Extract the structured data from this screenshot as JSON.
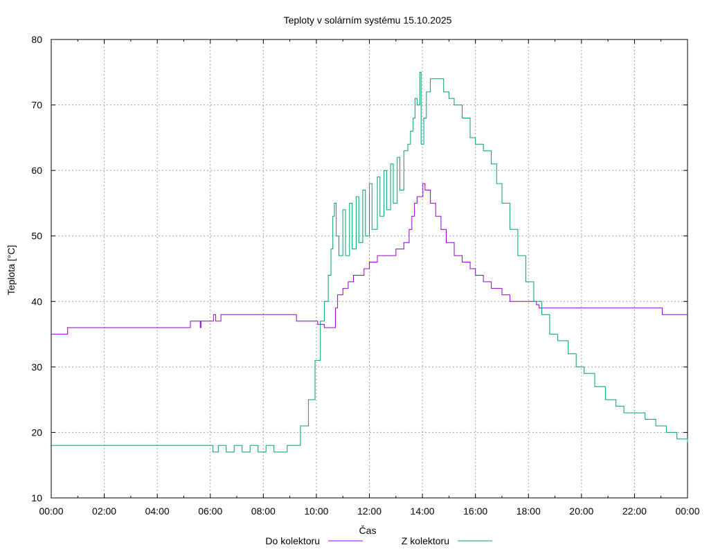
{
  "chart_data": {
    "type": "line",
    "title": "Teploty v solárním systému 15.10.2025",
    "xlabel": "Čas",
    "ylabel": "Teplota [°C]",
    "xlim": [
      0,
      24
    ],
    "ylim": [
      10,
      80
    ],
    "x_ticks": [
      0,
      2,
      4,
      6,
      8,
      10,
      12,
      14,
      16,
      18,
      20,
      22,
      24
    ],
    "x_tick_labels": [
      "00:00",
      "02:00",
      "04:00",
      "06:00",
      "08:00",
      "10:00",
      "12:00",
      "14:00",
      "16:00",
      "18:00",
      "20:00",
      "22:00",
      "00:00"
    ],
    "y_ticks": [
      10,
      20,
      30,
      40,
      50,
      60,
      70,
      80
    ],
    "y_tick_labels": [
      "10",
      "20",
      "30",
      "40",
      "50",
      "60",
      "70",
      "80"
    ],
    "grid": true,
    "legend_position": "bottom",
    "series": [
      {
        "name": "Do kolektoru",
        "color": "#9400d3",
        "points": [
          [
            0,
            35
          ],
          [
            0.6,
            35
          ],
          [
            0.62,
            36
          ],
          [
            3.5,
            36
          ],
          [
            5.2,
            36
          ],
          [
            5.25,
            37
          ],
          [
            5.6,
            37
          ],
          [
            5.62,
            36
          ],
          [
            5.65,
            37
          ],
          [
            6.1,
            37
          ],
          [
            6.12,
            38
          ],
          [
            6.2,
            37
          ],
          [
            6.4,
            38
          ],
          [
            9.2,
            38
          ],
          [
            9.25,
            37
          ],
          [
            9.9,
            37
          ],
          [
            10.0,
            37
          ],
          [
            10.05,
            36.5
          ],
          [
            10.3,
            36
          ],
          [
            10.7,
            36
          ],
          [
            10.72,
            39
          ],
          [
            10.8,
            41
          ],
          [
            11.0,
            42
          ],
          [
            11.2,
            43
          ],
          [
            11.4,
            44
          ],
          [
            11.7,
            44
          ],
          [
            11.8,
            45
          ],
          [
            12.0,
            46
          ],
          [
            12.3,
            47
          ],
          [
            12.8,
            47
          ],
          [
            13.0,
            48
          ],
          [
            13.3,
            49
          ],
          [
            13.5,
            51
          ],
          [
            13.6,
            53
          ],
          [
            13.7,
            55
          ],
          [
            13.8,
            56
          ],
          [
            14.0,
            56
          ],
          [
            14.02,
            58
          ],
          [
            14.1,
            57
          ],
          [
            14.3,
            55
          ],
          [
            14.5,
            53
          ],
          [
            14.7,
            51
          ],
          [
            14.9,
            49
          ],
          [
            15.2,
            47
          ],
          [
            15.5,
            46
          ],
          [
            15.8,
            45
          ],
          [
            16.0,
            44
          ],
          [
            16.3,
            43
          ],
          [
            16.6,
            42
          ],
          [
            17.0,
            41
          ],
          [
            17.3,
            40
          ],
          [
            18.0,
            40
          ],
          [
            18.3,
            39.5
          ],
          [
            18.4,
            39
          ],
          [
            20.0,
            39
          ],
          [
            23.0,
            39
          ],
          [
            23.05,
            38
          ],
          [
            24.0,
            38
          ]
        ]
      },
      {
        "name": "Z kolektoru",
        "color": "#009e73",
        "points": [
          [
            0,
            18
          ],
          [
            6.0,
            18
          ],
          [
            6.1,
            17
          ],
          [
            6.3,
            18
          ],
          [
            6.6,
            17
          ],
          [
            6.9,
            18
          ],
          [
            7.2,
            17
          ],
          [
            7.5,
            18
          ],
          [
            7.8,
            17
          ],
          [
            8.1,
            18
          ],
          [
            8.4,
            17
          ],
          [
            8.7,
            17
          ],
          [
            8.9,
            18
          ],
          [
            9.1,
            18
          ],
          [
            9.4,
            21
          ],
          [
            9.7,
            25
          ],
          [
            9.95,
            31
          ],
          [
            10.15,
            37
          ],
          [
            10.3,
            40
          ],
          [
            10.45,
            44
          ],
          [
            10.55,
            48
          ],
          [
            10.62,
            53
          ],
          [
            10.68,
            55
          ],
          [
            10.75,
            50
          ],
          [
            10.85,
            47
          ],
          [
            11.0,
            54
          ],
          [
            11.1,
            47
          ],
          [
            11.25,
            55
          ],
          [
            11.35,
            48
          ],
          [
            11.5,
            56
          ],
          [
            11.6,
            49
          ],
          [
            11.75,
            57
          ],
          [
            11.85,
            50
          ],
          [
            12.0,
            58
          ],
          [
            12.1,
            51
          ],
          [
            12.3,
            59
          ],
          [
            12.4,
            53
          ],
          [
            12.55,
            60
          ],
          [
            12.65,
            54
          ],
          [
            12.8,
            61
          ],
          [
            12.9,
            55
          ],
          [
            13.05,
            62
          ],
          [
            13.15,
            57
          ],
          [
            13.3,
            63
          ],
          [
            13.45,
            64
          ],
          [
            13.55,
            66
          ],
          [
            13.65,
            68
          ],
          [
            13.72,
            71
          ],
          [
            13.8,
            70
          ],
          [
            13.9,
            75
          ],
          [
            13.95,
            64
          ],
          [
            14.05,
            68
          ],
          [
            14.15,
            72
          ],
          [
            14.3,
            74
          ],
          [
            14.6,
            74
          ],
          [
            14.8,
            72
          ],
          [
            15.0,
            71
          ],
          [
            15.2,
            70
          ],
          [
            15.5,
            68
          ],
          [
            15.8,
            65
          ],
          [
            16.0,
            64
          ],
          [
            16.3,
            63
          ],
          [
            16.6,
            61
          ],
          [
            16.8,
            58
          ],
          [
            17.0,
            55
          ],
          [
            17.3,
            51
          ],
          [
            17.6,
            47
          ],
          [
            17.9,
            43
          ],
          [
            18.2,
            40
          ],
          [
            18.5,
            38
          ],
          [
            18.8,
            35
          ],
          [
            19.1,
            34
          ],
          [
            19.5,
            32
          ],
          [
            19.8,
            30
          ],
          [
            20.1,
            29
          ],
          [
            20.5,
            27
          ],
          [
            20.9,
            25
          ],
          [
            21.3,
            24
          ],
          [
            21.6,
            23
          ],
          [
            22.2,
            23
          ],
          [
            22.4,
            22
          ],
          [
            22.8,
            21
          ],
          [
            23.2,
            20
          ],
          [
            23.6,
            19
          ],
          [
            24.0,
            18.5
          ]
        ]
      }
    ]
  }
}
